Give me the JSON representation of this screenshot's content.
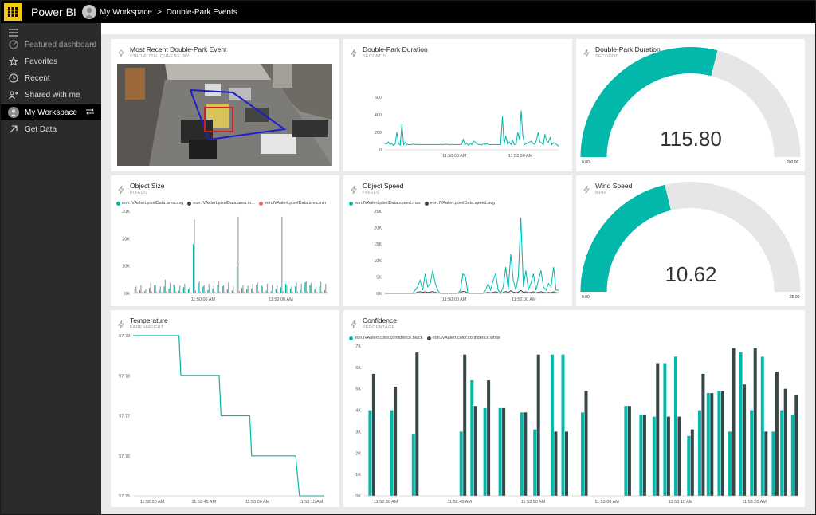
{
  "app": {
    "name": "Power BI"
  },
  "breadcrumb": {
    "workspace": "My Workspace",
    "sep": ">",
    "dashboard": "Double-Park Events"
  },
  "sidebar": {
    "items": [
      {
        "label": "Featured dashboard",
        "icon": "gauge-icon"
      },
      {
        "label": "Favorites",
        "icon": "star-icon"
      },
      {
        "label": "Recent",
        "icon": "clock-icon"
      },
      {
        "label": "Shared with me",
        "icon": "share-icon"
      },
      {
        "label": "My Workspace",
        "icon": "person-icon"
      },
      {
        "label": "Get Data",
        "icon": "arrow-up-right-icon"
      }
    ],
    "more": "···"
  },
  "colors": {
    "teal": "#01b8aa",
    "dark": "#374649",
    "red": "#fd625e",
    "gaugebg": "#e6e6e6"
  },
  "tiles": {
    "recent_event": {
      "title": "Most Recent Double-Park Event",
      "subtitle": "53RD & 7TH, QUEENS, NY"
    },
    "duration_line": {
      "title": "Double-Park Duration",
      "subtitle": "SECONDS"
    },
    "duration_gauge": {
      "title": "Double-Park Duration",
      "subtitle": "SECONDS",
      "value_text": "115.80",
      "min": "0.00",
      "max": "200.00"
    },
    "object_size": {
      "title": "Object Size",
      "subtitle": "PIXELS",
      "legend": [
        "eon.IVAalert.pixelData.area.avg",
        "eon.IVAalert.pixelData.area.m...",
        "eon.IVAalert.pixelData.area.min"
      ]
    },
    "object_speed": {
      "title": "Object Speed",
      "subtitle": "PIXELS",
      "legend": [
        "eon.IVAalert.pixelData.speed.max",
        "eon.IVAalert.pixelData.speed.avg"
      ]
    },
    "wind_gauge": {
      "title": "Wind Speed",
      "subtitle": "MPH",
      "value_text": "10.62",
      "min": "0.00",
      "max": "25.00"
    },
    "temperature": {
      "title": "Temperature",
      "subtitle": "FARENHEIGHT"
    },
    "confidence": {
      "title": "Confidence",
      "subtitle": "PERCENTAGE",
      "legend": [
        "eon.IVAalert.color.confidence.black",
        "eon.IVAalert.color.confidence.white"
      ]
    }
  },
  "chart_data": [
    {
      "id": "duration_line",
      "type": "line",
      "ylim": [
        0,
        600
      ],
      "yticks": [
        "0",
        "200",
        "400",
        "600"
      ],
      "xticks": [
        "11:50:00 AM",
        "11:52:00 AM"
      ],
      "series": [
        {
          "values": [
            70,
            65,
            90,
            60,
            75,
            50,
            65,
            200,
            70,
            55,
            300,
            60,
            85,
            60,
            60,
            60,
            60,
            65,
            60,
            60,
            60,
            60,
            60,
            60,
            60,
            60,
            60,
            60,
            60,
            60,
            60,
            60,
            60,
            60,
            60,
            60,
            65,
            60,
            60,
            60,
            60,
            60,
            60,
            60,
            60,
            60,
            120,
            55,
            80,
            50,
            70,
            60,
            100,
            90,
            65,
            60,
            60,
            55,
            80,
            60,
            70,
            60,
            60,
            60,
            60,
            60,
            60,
            60,
            60,
            380,
            60,
            160,
            65,
            90,
            60,
            110,
            60,
            60,
            200,
            120,
            450,
            160,
            60,
            70,
            80,
            90,
            100,
            75,
            60,
            110,
            200,
            90,
            80,
            60,
            180,
            100,
            85,
            140,
            60,
            80,
            70,
            60,
            40
          ]
        }
      ]
    },
    {
      "id": "object_size",
      "type": "bar",
      "ylim": [
        0,
        30000
      ],
      "yticks": [
        "0K",
        "10K",
        "20K",
        "30K"
      ],
      "xticks": [
        "11:50:00 AM",
        "11:52:00 AM"
      ],
      "series": [
        {
          "name": "eon.IVAalert.pixelData.area.avg",
          "values": [
            1500,
            1200,
            800,
            2000,
            3000,
            1100,
            2500,
            1800,
            3200,
            1000,
            2200,
            1500,
            18000,
            3800,
            2500,
            1200,
            1800,
            3100,
            2600,
            1500,
            1000,
            10000,
            2000,
            1500,
            1800,
            3200,
            3000,
            1000,
            800,
            1600,
            2200,
            3500,
            1800,
            2600,
            1200,
            4000,
            3000,
            1500,
            2500,
            1200
          ]
        },
        {
          "name": "eon.IVAalert.pixelData.area.m...",
          "values": [
            2500,
            3000,
            1500,
            4000,
            3000,
            2500,
            5000,
            4000,
            2500,
            2800,
            3500,
            2000,
            27000,
            4500,
            3000,
            3500,
            2800,
            4500,
            3000,
            4000,
            2500,
            28000,
            3000,
            2800,
            3500,
            4000,
            2500,
            3500,
            3000,
            2800,
            28000,
            3000,
            2500,
            4000,
            3500,
            4500,
            3800,
            3000,
            4200,
            3500
          ]
        },
        {
          "name": "eon.IVAalert.pixelData.area.min",
          "values": [
            500,
            400,
            300,
            600,
            500,
            400,
            700,
            500,
            600,
            400,
            500,
            300,
            1000,
            600,
            500,
            400,
            500,
            600,
            500,
            400,
            300,
            800,
            500,
            400,
            500,
            600,
            500,
            400,
            300,
            400,
            700,
            600,
            500,
            600,
            400,
            700,
            600,
            500,
            600,
            400
          ]
        }
      ]
    },
    {
      "id": "object_speed",
      "type": "line",
      "ylim": [
        0,
        25
      ],
      "yticks": [
        "0K",
        "5K",
        "10K",
        "15K",
        "20K",
        "25K"
      ],
      "xticks": [
        "11:50:00 AM",
        "11:52:00 AM"
      ],
      "series": [
        {
          "name": "eon.IVAalert.pixelData.speed.max",
          "values": [
            0,
            0,
            0,
            0,
            0,
            0,
            0,
            0,
            0,
            0,
            0,
            0,
            1,
            2,
            4,
            1,
            6,
            2,
            3,
            7,
            3,
            1,
            0,
            0,
            0,
            0,
            0,
            0,
            0,
            0,
            1,
            6,
            5,
            0,
            0,
            0,
            0,
            0,
            0,
            0,
            1,
            3,
            1,
            4,
            6,
            1,
            0,
            2,
            8,
            1,
            12,
            4,
            1,
            5,
            23,
            2,
            7,
            1,
            3,
            6,
            1,
            4,
            7,
            2,
            1,
            3,
            2,
            8,
            1,
            1
          ]
        },
        {
          "name": "eon.IVAalert.pixelData.speed.avg",
          "values": [
            0,
            0,
            0,
            0,
            0,
            0,
            0,
            0,
            0,
            0,
            0,
            0,
            0,
            0.4,
            0.5,
            0.3,
            0.5,
            0.3,
            0.4,
            0.6,
            0.3,
            0.2,
            0,
            0,
            0,
            0,
            0,
            0,
            0,
            0,
            0.3,
            0.6,
            0.5,
            0,
            0,
            0,
            0,
            0,
            0,
            0,
            0.2,
            0.3,
            0.2,
            0.3,
            0.5,
            0.2,
            0,
            0.3,
            0.6,
            0.2,
            0.8,
            0.4,
            0.2,
            0.4,
            0.9,
            0.3,
            0.5,
            0.2,
            0.3,
            0.5,
            0.2,
            0.3,
            0.5,
            0.3,
            0.2,
            0.3,
            0.2,
            0.5,
            0.2,
            0.2
          ]
        }
      ]
    },
    {
      "id": "temperature",
      "type": "line",
      "ylim": [
        57.75,
        57.79
      ],
      "yticks": [
        "57.75",
        "57.76",
        "57.77",
        "57.78",
        "57.79"
      ],
      "xticks": [
        "11:52:30 AM",
        "11:52:45 AM",
        "11:53:00 AM",
        "11:53:15 AM"
      ],
      "x": [
        0,
        0.24,
        0.25,
        0.45,
        0.46,
        0.61,
        0.62,
        0.85,
        0.87,
        1
      ],
      "y": [
        57.79,
        57.79,
        57.78,
        57.78,
        57.77,
        57.77,
        57.76,
        57.76,
        57.75,
        57.75
      ]
    },
    {
      "id": "confidence",
      "type": "bar",
      "ylim": [
        0,
        7000
      ],
      "yticks": [
        "0K",
        "1K",
        "2K",
        "3K",
        "4K",
        "5K",
        "6K",
        "7K"
      ],
      "xticks": [
        "11:52:30 AM",
        "11:52:40 AM",
        "11:52:50 AM",
        "11:53:00 AM",
        "11:53:10 AM",
        "11:53:20 AM"
      ],
      "groups": [
        {
          "x": 0.01,
          "white": 4000,
          "black": 5700
        },
        {
          "x": 0.06,
          "white": 4000,
          "black": 5100
        },
        {
          "x": 0.11,
          "white": 2900,
          "black": 6700
        },
        {
          "x": 0.22,
          "white": 3000,
          "black": 6600
        },
        {
          "x": 0.245,
          "white": 5400,
          "black": 4200
        },
        {
          "x": 0.275,
          "white": 4100,
          "black": 5400
        },
        {
          "x": 0.31,
          "white": 4100,
          "black": 4100
        },
        {
          "x": 0.36,
          "white": 3900,
          "black": 3900
        },
        {
          "x": 0.39,
          "white": 3100,
          "black": 6600
        },
        {
          "x": 0.43,
          "white": 6600,
          "black": 3000
        },
        {
          "x": 0.455,
          "white": 6600,
          "black": 3000
        },
        {
          "x": 0.5,
          "white": 3900,
          "black": 4900
        },
        {
          "x": 0.6,
          "white": 4200,
          "black": 4200
        },
        {
          "x": 0.635,
          "white": 3800,
          "black": 3800
        },
        {
          "x": 0.665,
          "white": 3700,
          "black": 6200
        },
        {
          "x": 0.69,
          "white": 6200,
          "black": 3700
        },
        {
          "x": 0.715,
          "white": 6500,
          "black": 3700
        },
        {
          "x": 0.745,
          "white": 2800,
          "black": 3100
        },
        {
          "x": 0.77,
          "white": 4000,
          "black": 5700
        },
        {
          "x": 0.79,
          "white": 4800,
          "black": 4800
        },
        {
          "x": 0.815,
          "white": 4900,
          "black": 4900
        },
        {
          "x": 0.84,
          "white": 3000,
          "black": 6900
        },
        {
          "x": 0.865,
          "white": 6700,
          "black": 5200
        },
        {
          "x": 0.89,
          "white": 4000,
          "black": 6900
        },
        {
          "x": 0.915,
          "white": 6500,
          "black": 3000
        },
        {
          "x": 0.94,
          "white": 3000,
          "black": 5800
        },
        {
          "x": 0.96,
          "white": 4000,
          "black": 5000
        },
        {
          "x": 0.985,
          "white": 3800,
          "black": 4700
        }
      ]
    }
  ]
}
